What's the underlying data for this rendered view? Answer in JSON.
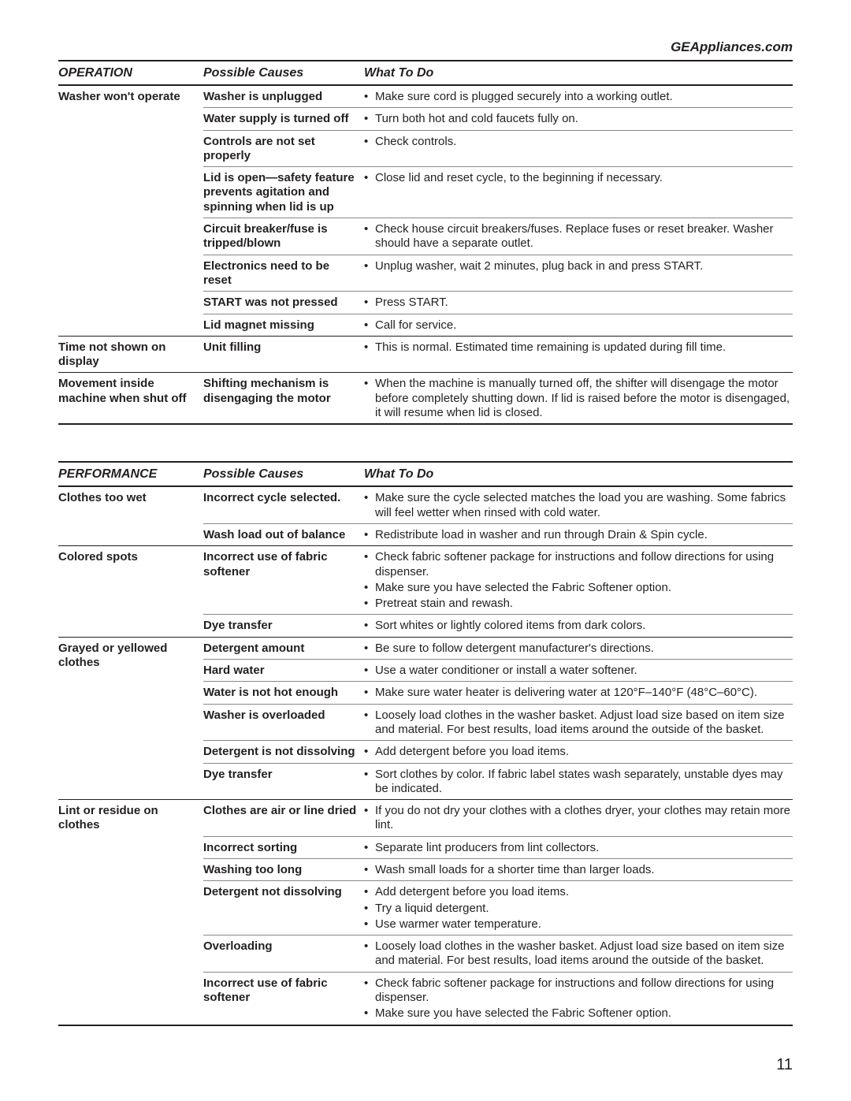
{
  "site_link": "GEAppliances.com",
  "page_number": "11",
  "tables": [
    {
      "headers": {
        "c1": "OPERATION",
        "c2": "Possible Causes",
        "c3": "What To Do"
      },
      "sections": [
        {
          "problem": "Washer won't operate",
          "causes": [
            {
              "cause": "Washer is unplugged",
              "todos": [
                "Make sure cord is plugged securely into a working outlet."
              ]
            },
            {
              "cause": "Water supply is turned off",
              "todos": [
                "Turn both hot and cold faucets fully on."
              ]
            },
            {
              "cause": "Controls are not set properly",
              "todos": [
                "Check controls."
              ]
            },
            {
              "cause": "Lid is open—safety feature prevents agitation and spinning when lid is up",
              "todos": [
                "Close lid and reset cycle, to the beginning if necessary."
              ]
            },
            {
              "cause": "Circuit breaker/fuse is tripped/blown",
              "todos": [
                "Check house circuit breakers/fuses. Replace fuses or reset breaker. Washer should have a separate outlet."
              ]
            },
            {
              "cause": "Electronics need to be reset",
              "todos": [
                "Unplug washer, wait 2 minutes, plug back in and press START."
              ]
            },
            {
              "cause": "START was not pressed",
              "todos": [
                "Press START."
              ]
            },
            {
              "cause": "Lid magnet missing",
              "todos": [
                "Call for service."
              ]
            }
          ]
        },
        {
          "problem": "Time not shown on display",
          "causes": [
            {
              "cause": "Unit filling",
              "todos": [
                "This is normal. Estimated time remaining is updated during fill time."
              ]
            }
          ]
        },
        {
          "problem": "Movement inside machine when shut off",
          "causes": [
            {
              "cause": "Shifting mechanism is disengaging the motor",
              "todos": [
                "When the machine is manually turned off, the shifter will disengage the motor before completely shutting down. If lid is raised before the motor is disengaged, it will resume when lid is closed."
              ]
            }
          ]
        }
      ]
    },
    {
      "headers": {
        "c1": "PERFORMANCE",
        "c2": "Possible Causes",
        "c3": "What To Do"
      },
      "sections": [
        {
          "problem": "Clothes too wet",
          "causes": [
            {
              "cause": "Incorrect cycle selected.",
              "todos": [
                "Make sure the cycle selected matches the load you are washing. Some fabrics will feel wetter when rinsed with cold water."
              ]
            },
            {
              "cause": "Wash load out of balance",
              "todos": [
                "Redistribute load in washer and run through Drain & Spin cycle."
              ]
            }
          ]
        },
        {
          "problem": "Colored spots",
          "causes": [
            {
              "cause": "Incorrect use of fabric softener",
              "todos": [
                "Check fabric softener package for instructions and follow directions for using dispenser.",
                "Make sure you have selected the Fabric Softener option.",
                "Pretreat stain and rewash."
              ]
            },
            {
              "cause": "Dye transfer",
              "todos": [
                "Sort whites or lightly colored items from dark colors."
              ]
            }
          ]
        },
        {
          "problem": "Grayed or yellowed clothes",
          "causes": [
            {
              "cause": "Detergent amount",
              "todos": [
                "Be sure to follow detergent manufacturer's directions."
              ]
            },
            {
              "cause": "Hard water",
              "todos": [
                "Use a water conditioner or install a water softener."
              ]
            },
            {
              "cause": "Water is not hot enough",
              "todos": [
                "Make sure water heater is delivering water at 120°F–140°F (48°C–60°C)."
              ]
            },
            {
              "cause": "Washer is overloaded",
              "todos": [
                "Loosely load clothes in the washer basket. Adjust load size based on item size and material. For best results, load items around the outside of the basket."
              ]
            },
            {
              "cause": "Detergent is not dissolving",
              "todos": [
                "Add detergent  before you load items."
              ]
            },
            {
              "cause": "Dye transfer",
              "todos": [
                "Sort clothes by color. If fabric label states wash separately, unstable dyes may be indicated."
              ]
            }
          ]
        },
        {
          "problem": "Lint or residue on clothes",
          "causes": [
            {
              "cause": "Clothes are air or line dried",
              "todos": [
                "If you do not dry your clothes with a clothes dryer, your clothes may retain more lint."
              ]
            },
            {
              "cause": "Incorrect sorting",
              "todos": [
                "Separate lint producers from lint collectors."
              ]
            },
            {
              "cause": "Washing too long",
              "todos": [
                "Wash small loads for a shorter time than larger loads."
              ]
            },
            {
              "cause": "Detergent not dissolving",
              "todos": [
                "Add detergent  before you load items.",
                "Try a liquid detergent.",
                "Use warmer water temperature."
              ]
            },
            {
              "cause": "Overloading",
              "todos": [
                "Loosely load clothes in the washer basket. Adjust load size based on item size and material. For best results, load items around the outside of the basket."
              ]
            },
            {
              "cause": "Incorrect use of fabric softener",
              "todos": [
                "Check fabric softener package for instructions and follow directions for using dispenser.",
                "Make sure you have selected the Fabric Softener option."
              ]
            }
          ]
        }
      ]
    }
  ]
}
